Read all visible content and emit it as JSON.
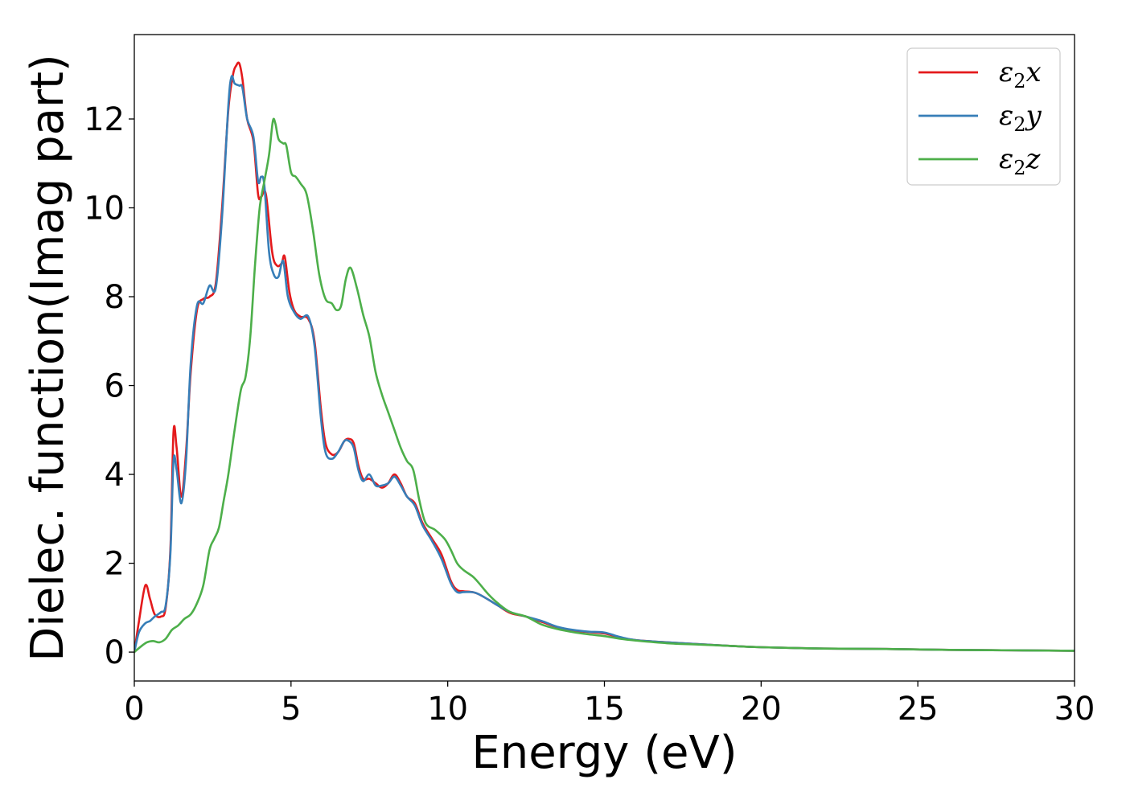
{
  "chart_data": {
    "type": "line",
    "title": "",
    "xlabel": "Energy (eV)",
    "ylabel": "Dielec. function(Imag part)",
    "xlim": [
      0,
      30
    ],
    "ylim": [
      -0.65,
      13.9
    ],
    "xticks": [
      0,
      5,
      10,
      15,
      20,
      25,
      30
    ],
    "xtick_labels": [
      "0",
      "5",
      "10",
      "15",
      "20",
      "25",
      "30"
    ],
    "yticks": [
      0,
      2,
      4,
      6,
      8,
      10,
      12
    ],
    "ytick_labels": [
      "0",
      "2",
      "4",
      "6",
      "8",
      "10",
      "12"
    ],
    "grid": false,
    "legend": {
      "position": "top-right"
    },
    "series": [
      {
        "name": "ε2x",
        "legend_main": "ε",
        "legend_sub": "2",
        "legend_tail": "x",
        "color": "#e41a1c",
        "x": [
          0.0,
          0.15,
          0.35,
          0.5,
          0.65,
          0.85,
          1.0,
          1.15,
          1.25,
          1.35,
          1.5,
          1.65,
          1.8,
          2.0,
          2.2,
          2.4,
          2.6,
          2.8,
          3.0,
          3.15,
          3.25,
          3.35,
          3.45,
          3.6,
          3.8,
          3.95,
          4.05,
          4.2,
          4.4,
          4.55,
          4.7,
          4.8,
          4.95,
          5.1,
          5.3,
          5.55,
          5.75,
          5.95,
          6.1,
          6.3,
          6.5,
          6.7,
          6.85,
          7.0,
          7.15,
          7.3,
          7.5,
          7.7,
          7.9,
          8.1,
          8.3,
          8.5,
          8.7,
          8.95,
          9.2,
          9.5,
          9.8,
          10.1,
          10.3,
          10.5,
          10.8,
          11.0,
          11.3,
          11.6,
          12.0,
          12.5,
          13.0,
          13.5,
          14.0,
          14.5,
          15.0,
          15.5,
          16.0,
          17.0,
          18.0,
          19.0,
          20.0,
          22.0,
          24.0,
          26.0,
          28.0,
          30.0
        ],
        "values": [
          0.0,
          0.7,
          1.5,
          1.2,
          0.85,
          0.8,
          1.0,
          2.3,
          4.95,
          4.6,
          3.5,
          4.5,
          6.3,
          7.7,
          7.95,
          8.0,
          8.3,
          10.0,
          12.2,
          13.0,
          13.2,
          13.25,
          12.9,
          12.0,
          11.5,
          10.3,
          10.25,
          10.3,
          9.0,
          8.7,
          8.75,
          8.9,
          8.1,
          7.7,
          7.55,
          7.5,
          7.0,
          5.5,
          4.7,
          4.45,
          4.5,
          4.75,
          4.8,
          4.7,
          4.2,
          3.9,
          3.9,
          3.8,
          3.7,
          3.8,
          4.0,
          3.8,
          3.5,
          3.35,
          2.9,
          2.55,
          2.2,
          1.6,
          1.4,
          1.37,
          1.35,
          1.3,
          1.18,
          1.05,
          0.88,
          0.8,
          0.68,
          0.56,
          0.48,
          0.45,
          0.42,
          0.33,
          0.27,
          0.22,
          0.18,
          0.14,
          0.11,
          0.08,
          0.07,
          0.05,
          0.04,
          0.03
        ]
      },
      {
        "name": "ε2y",
        "legend_main": "ε",
        "legend_sub": "2",
        "legend_tail": "y",
        "color": "#377eb8",
        "x": [
          0.0,
          0.15,
          0.35,
          0.5,
          0.65,
          0.85,
          1.0,
          1.15,
          1.25,
          1.35,
          1.5,
          1.65,
          1.8,
          2.0,
          2.2,
          2.4,
          2.6,
          2.8,
          3.0,
          3.1,
          3.2,
          3.35,
          3.45,
          3.6,
          3.8,
          3.95,
          4.05,
          4.15,
          4.3,
          4.45,
          4.6,
          4.75,
          4.9,
          5.1,
          5.3,
          5.55,
          5.75,
          5.95,
          6.1,
          6.3,
          6.5,
          6.7,
          6.85,
          7.0,
          7.15,
          7.3,
          7.5,
          7.7,
          7.9,
          8.1,
          8.3,
          8.5,
          8.7,
          8.95,
          9.2,
          9.5,
          9.8,
          10.1,
          10.3,
          10.5,
          10.8,
          11.0,
          11.3,
          11.6,
          12.0,
          12.5,
          13.0,
          13.5,
          14.0,
          14.5,
          15.0,
          15.5,
          16.0,
          17.0,
          18.0,
          19.0,
          20.0,
          22.0,
          24.0,
          26.0,
          28.0,
          30.0
        ],
        "values": [
          0.0,
          0.45,
          0.65,
          0.7,
          0.8,
          0.9,
          1.05,
          2.2,
          4.3,
          4.1,
          3.35,
          4.3,
          6.5,
          7.8,
          7.85,
          8.25,
          8.2,
          9.8,
          12.3,
          12.95,
          12.8,
          12.75,
          12.7,
          12.0,
          11.6,
          10.6,
          10.7,
          10.5,
          9.0,
          8.5,
          8.45,
          8.8,
          8.0,
          7.65,
          7.5,
          7.55,
          6.9,
          5.3,
          4.5,
          4.35,
          4.5,
          4.75,
          4.75,
          4.6,
          4.1,
          3.85,
          4.0,
          3.75,
          3.75,
          3.8,
          3.95,
          3.75,
          3.5,
          3.3,
          2.85,
          2.5,
          2.1,
          1.55,
          1.35,
          1.35,
          1.35,
          1.3,
          1.18,
          1.05,
          0.9,
          0.8,
          0.7,
          0.57,
          0.5,
          0.46,
          0.44,
          0.34,
          0.27,
          0.22,
          0.18,
          0.14,
          0.11,
          0.08,
          0.07,
          0.05,
          0.04,
          0.03
        ]
      },
      {
        "name": "ε2z",
        "legend_main": "ε",
        "legend_sub": "2",
        "legend_tail": "z",
        "color": "#4daf4a",
        "x": [
          0.0,
          0.2,
          0.4,
          0.6,
          0.8,
          1.0,
          1.2,
          1.4,
          1.6,
          1.8,
          2.0,
          2.2,
          2.4,
          2.55,
          2.7,
          2.85,
          3.0,
          3.2,
          3.4,
          3.55,
          3.7,
          3.85,
          4.0,
          4.15,
          4.3,
          4.42,
          4.5,
          4.6,
          4.75,
          4.85,
          5.0,
          5.15,
          5.3,
          5.5,
          5.7,
          5.9,
          6.1,
          6.3,
          6.45,
          6.6,
          6.75,
          6.9,
          7.1,
          7.3,
          7.5,
          7.7,
          7.9,
          8.1,
          8.3,
          8.5,
          8.7,
          8.9,
          9.1,
          9.3,
          9.6,
          9.9,
          10.1,
          10.3,
          10.5,
          10.8,
          11.0,
          11.3,
          11.6,
          12.0,
          12.5,
          13.0,
          13.5,
          14.0,
          14.5,
          15.0,
          15.5,
          16.0,
          17.0,
          18.0,
          19.0,
          20.0,
          22.0,
          24.0,
          26.0,
          28.0,
          30.0
        ],
        "values": [
          0.0,
          0.12,
          0.22,
          0.25,
          0.22,
          0.3,
          0.5,
          0.6,
          0.75,
          0.85,
          1.1,
          1.5,
          2.3,
          2.55,
          2.8,
          3.4,
          4.0,
          5.0,
          5.9,
          6.2,
          7.1,
          8.7,
          10.0,
          10.6,
          11.2,
          11.95,
          11.9,
          11.55,
          11.45,
          11.4,
          10.8,
          10.7,
          10.55,
          10.3,
          9.5,
          8.5,
          7.95,
          7.85,
          7.7,
          7.8,
          8.4,
          8.65,
          8.2,
          7.6,
          7.1,
          6.3,
          5.8,
          5.4,
          5.0,
          4.6,
          4.3,
          4.1,
          3.4,
          2.9,
          2.75,
          2.55,
          2.3,
          2.0,
          1.85,
          1.7,
          1.55,
          1.3,
          1.1,
          0.9,
          0.8,
          0.62,
          0.52,
          0.45,
          0.4,
          0.36,
          0.3,
          0.26,
          0.2,
          0.17,
          0.14,
          0.11,
          0.08,
          0.07,
          0.05,
          0.04,
          0.03
        ]
      }
    ]
  }
}
